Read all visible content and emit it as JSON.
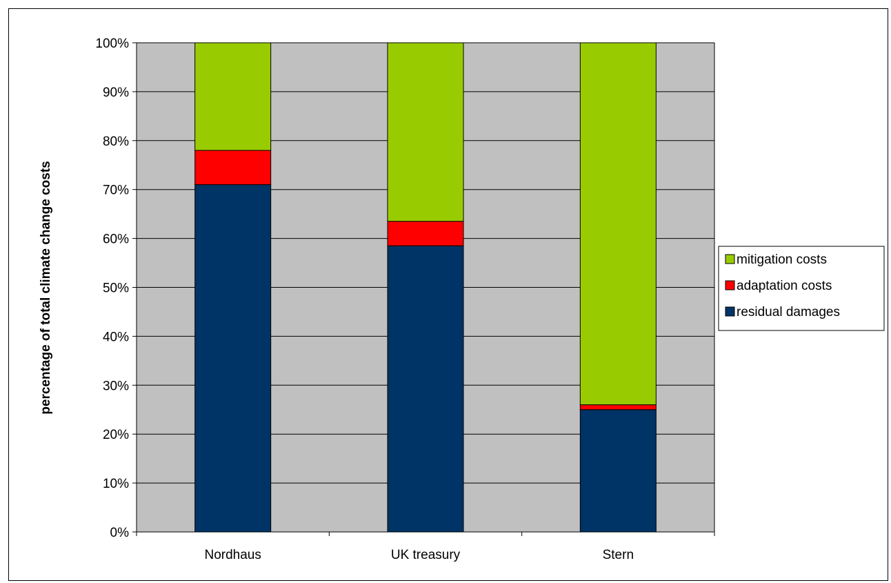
{
  "chart_data": {
    "type": "bar",
    "stacked": true,
    "percent": true,
    "categories": [
      "Nordhaus",
      "UK treasury",
      "Stern"
    ],
    "series": [
      {
        "name": "residual damages",
        "values": [
          71,
          58.5,
          25
        ],
        "color": "#003366"
      },
      {
        "name": "adaptation costs",
        "values": [
          7,
          5,
          1
        ],
        "color": "#ff0000"
      },
      {
        "name": "mitigation costs",
        "values": [
          22,
          36.5,
          74
        ],
        "color": "#99cc00"
      }
    ],
    "title": "",
    "xlabel": "",
    "ylabel": "percentage  of total  climate change costs",
    "ylim": [
      0,
      100
    ],
    "yticks": [
      "0%",
      "10%",
      "20%",
      "30%",
      "40%",
      "50%",
      "60%",
      "70%",
      "80%",
      "90%",
      "100%"
    ],
    "grid": true,
    "legend_position": "right",
    "legend_order": [
      "mitigation costs",
      "adaptation costs",
      "residual damages"
    ],
    "plot_background": "#c0c0c0"
  }
}
